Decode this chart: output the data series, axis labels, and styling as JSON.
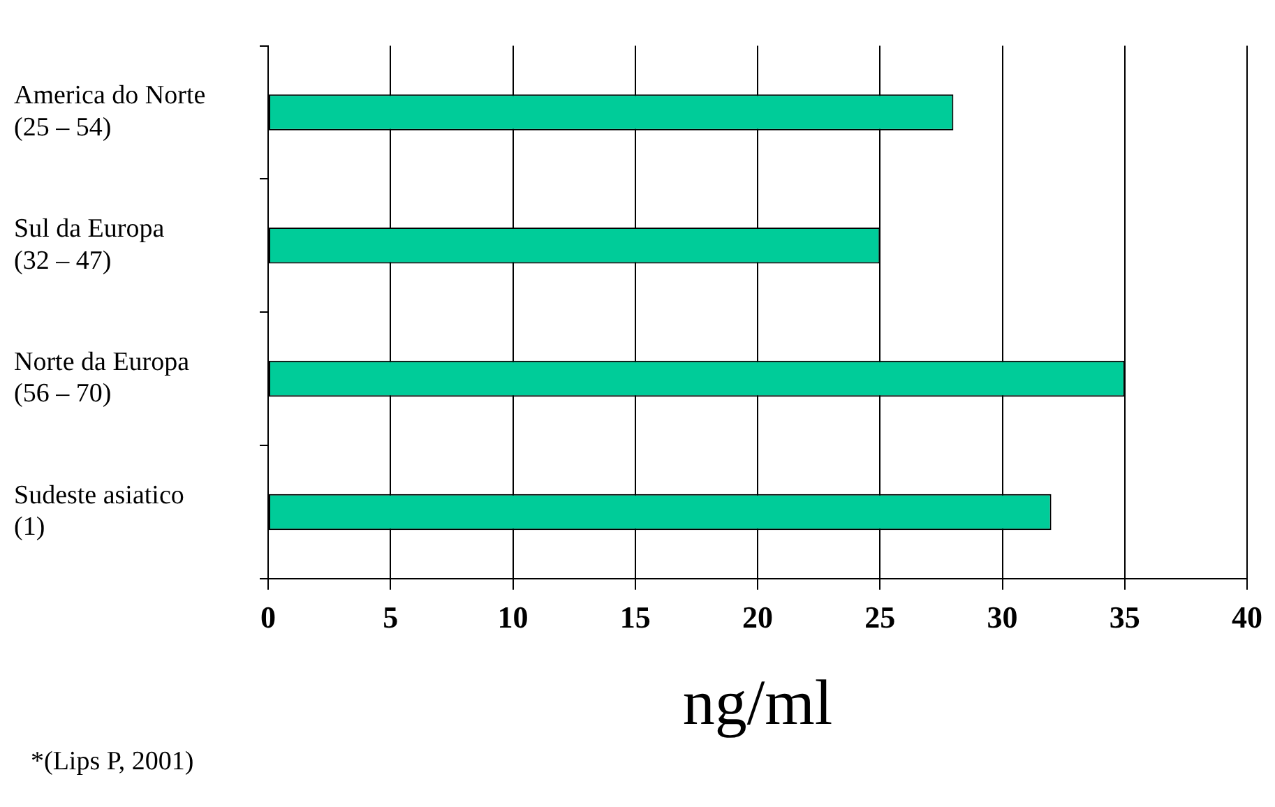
{
  "chart_data": {
    "type": "bar",
    "orientation": "horizontal",
    "categories": [
      "America do Norte\n(25 – 54)",
      "Sul da Europa\n(32 – 47)",
      "Norte da Europa\n(56 – 70)",
      "Sudeste asiatico\n(1)"
    ],
    "values": [
      28,
      25,
      35,
      32
    ],
    "color": "#00cc99",
    "xlim": [
      0,
      40
    ],
    "xticks": [
      0,
      5,
      10,
      15,
      20,
      25,
      30,
      35,
      40
    ],
    "grid": "x",
    "legend": false,
    "xlabel": "ng/ml",
    "annotations": [
      "*(Lips P, 2001)"
    ]
  }
}
